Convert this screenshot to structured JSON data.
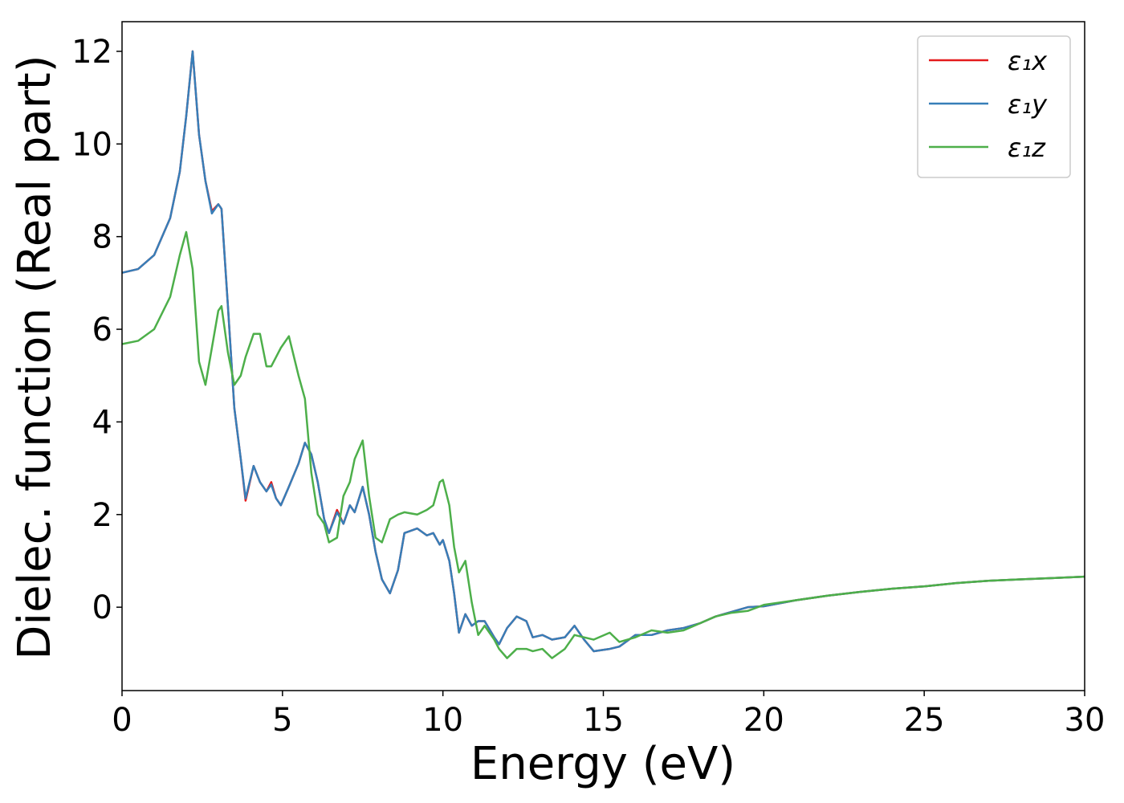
{
  "chart_data": {
    "type": "line",
    "xlabel": "Energy (eV)",
    "ylabel": "Dielec. function (Real part)",
    "x": [
      0,
      0.5,
      1,
      1.5,
      1.8,
      2,
      2.2,
      2.4,
      2.6,
      2.8,
      3,
      3.1,
      3.3,
      3.5,
      3.7,
      3.85,
      4.1,
      4.3,
      4.5,
      4.65,
      4.8,
      4.95,
      5.2,
      5.5,
      5.7,
      5.9,
      6.1,
      6.3,
      6.45,
      6.7,
      6.9,
      7.1,
      7.25,
      7.5,
      7.7,
      7.9,
      8.1,
      8.35,
      8.6,
      8.8,
      9.2,
      9.5,
      9.7,
      9.9,
      10,
      10.2,
      10.35,
      10.5,
      10.7,
      10.9,
      11.1,
      11.3,
      11.6,
      11.75,
      12,
      12.3,
      12.6,
      12.8,
      13.1,
      13.4,
      13.8,
      14.1,
      14.4,
      14.7,
      15.2,
      15.5,
      16,
      16.5,
      17,
      17.5,
      18,
      18.5,
      19,
      19.5,
      20,
      21,
      22,
      23,
      24,
      25,
      26,
      27,
      28,
      29,
      30
    ],
    "series": [
      {
        "name": "ε₁x",
        "color": "#e41a1c",
        "values": [
          7.22,
          7.3,
          7.6,
          8.4,
          9.4,
          10.6,
          12.0,
          10.2,
          9.2,
          8.55,
          8.7,
          8.6,
          6.5,
          4.3,
          3.2,
          2.3,
          3.05,
          2.7,
          2.5,
          2.7,
          2.35,
          2.2,
          2.6,
          3.1,
          3.55,
          3.3,
          2.7,
          1.9,
          1.6,
          2.1,
          1.8,
          2.2,
          2.05,
          2.6,
          2.0,
          1.2,
          0.6,
          0.3,
          0.8,
          1.6,
          1.7,
          1.55,
          1.6,
          1.35,
          1.45,
          1.0,
          0.3,
          -0.55,
          -0.15,
          -0.4,
          -0.3,
          -0.3,
          -0.65,
          -0.8,
          -0.45,
          -0.2,
          -0.3,
          -0.65,
          -0.6,
          -0.7,
          -0.65,
          -0.4,
          -0.7,
          -0.95,
          -0.9,
          -0.85,
          -0.6,
          -0.6,
          -0.5,
          -0.45,
          -0.35,
          -0.2,
          -0.1,
          0,
          0.02,
          0.15,
          0.25,
          0.33,
          0.4,
          0.45,
          0.52,
          0.57,
          0.6,
          0.63,
          0.66
        ]
      },
      {
        "name": "ε₁y",
        "color": "#377eb8",
        "values": [
          7.22,
          7.3,
          7.6,
          8.4,
          9.4,
          10.6,
          12.0,
          10.2,
          9.2,
          8.5,
          8.7,
          8.6,
          6.5,
          4.3,
          3.2,
          2.35,
          3.05,
          2.7,
          2.5,
          2.65,
          2.35,
          2.2,
          2.6,
          3.1,
          3.55,
          3.3,
          2.7,
          1.9,
          1.6,
          2.05,
          1.8,
          2.2,
          2.05,
          2.6,
          2.0,
          1.2,
          0.6,
          0.3,
          0.8,
          1.6,
          1.7,
          1.55,
          1.6,
          1.35,
          1.45,
          1.0,
          0.3,
          -0.55,
          -0.15,
          -0.4,
          -0.3,
          -0.3,
          -0.65,
          -0.8,
          -0.45,
          -0.2,
          -0.3,
          -0.65,
          -0.6,
          -0.7,
          -0.65,
          -0.4,
          -0.7,
          -0.95,
          -0.9,
          -0.85,
          -0.6,
          -0.6,
          -0.5,
          -0.45,
          -0.35,
          -0.2,
          -0.1,
          0,
          0.02,
          0.15,
          0.25,
          0.33,
          0.4,
          0.45,
          0.52,
          0.57,
          0.6,
          0.63,
          0.66
        ]
      },
      {
        "name": "ε₁z",
        "color": "#4daf4a",
        "values": [
          5.68,
          5.75,
          6.0,
          6.7,
          7.6,
          8.1,
          7.3,
          5.3,
          4.8,
          5.6,
          6.4,
          6.5,
          5.5,
          4.8,
          5.0,
          5.4,
          5.9,
          5.9,
          5.2,
          5.2,
          5.4,
          5.6,
          5.85,
          5.0,
          4.5,
          2.9,
          2.0,
          1.8,
          1.4,
          1.5,
          2.4,
          2.7,
          3.2,
          3.6,
          2.4,
          1.5,
          1.4,
          1.9,
          2.0,
          2.05,
          2.0,
          2.1,
          2.2,
          2.7,
          2.75,
          2.2,
          1.3,
          0.75,
          1.0,
          0.1,
          -0.6,
          -0.4,
          -0.7,
          -0.9,
          -1.1,
          -0.9,
          -0.9,
          -0.95,
          -0.9,
          -1.1,
          -0.9,
          -0.6,
          -0.65,
          -0.7,
          -0.55,
          -0.75,
          -0.65,
          -0.5,
          -0.55,
          -0.5,
          -0.35,
          -0.2,
          -0.12,
          -0.08,
          0.05,
          0.15,
          0.25,
          0.33,
          0.4,
          0.45,
          0.52,
          0.57,
          0.6,
          0.63,
          0.66
        ]
      }
    ],
    "xlim": [
      0,
      30
    ],
    "xticks": [
      0,
      5,
      10,
      15,
      20,
      25,
      30
    ],
    "ylim": [
      -1.8,
      12.64
    ],
    "yticks": [
      0,
      2,
      4,
      6,
      8,
      10,
      12
    ],
    "legend": "upper right"
  }
}
